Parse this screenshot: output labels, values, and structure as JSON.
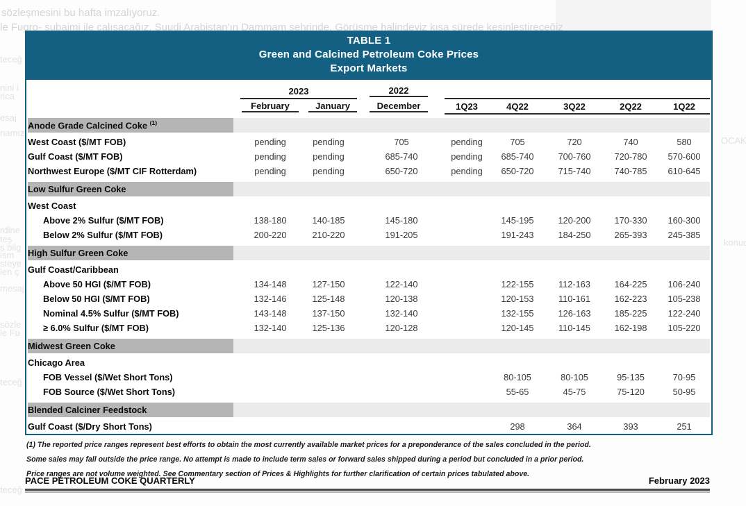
{
  "background": {
    "top_lines": [
      "sözleşmesini bu hafta imzalıyoruz.",
      "le Fugro- subaimi ile çalışacağız. Suudi Arabistan'ın Dammam şehrinde. Görüşme halindeyiz kısa sürede kesinleştireceğiz"
    ],
    "left_fragments": [
      "teceğ",
      "nini i",
      "rica",
      "esaj",
      "namız",
      "rdine",
      "teş",
      "s bilg",
      "ism",
      "steye",
      "len ç",
      "mesaj",
      "sözle",
      "le Fu",
      "teceğ",
      "teceğ"
    ],
    "right_fragments": [
      "OCAKER",
      "konud"
    ]
  },
  "table": {
    "title_line1": "TABLE 1",
    "title_line2": "Green and Calcined Petroleum Coke Prices",
    "title_line3": "Export Markets",
    "header": {
      "group_2023": "2023",
      "group_2022": "2022",
      "columns": [
        "February",
        "January",
        "December",
        "1Q23",
        "4Q22",
        "3Q22",
        "2Q22",
        "1Q22"
      ]
    },
    "sections": [
      {
        "header": "Anode Grade Calcined Coke",
        "sup": "(1)",
        "rows": [
          {
            "label": "West Coast ($/MT FOB)",
            "indent": 0,
            "values": [
              "pending",
              "pending",
              "705",
              "pending",
              "705",
              "720",
              "740",
              "580"
            ]
          },
          {
            "label": "Gulf Coast ($/MT FOB)",
            "indent": 0,
            "values": [
              "pending",
              "pending",
              "685-740",
              "pending",
              "685-740",
              "700-760",
              "720-780",
              "570-600"
            ]
          },
          {
            "label": "Northwest Europe ($/MT CIF Rotterdam)",
            "indent": 0,
            "values": [
              "pending",
              "pending",
              "650-720",
              "pending",
              "650-720",
              "715-740",
              "740-785",
              "610-645"
            ]
          }
        ]
      },
      {
        "header": "Low Sulfur Green Coke",
        "rows": [
          {
            "label": "West Coast",
            "indent": 0,
            "values": [
              "",
              "",
              "",
              "",
              "",
              "",
              "",
              ""
            ]
          },
          {
            "label": "Above 2% Sulfur ($/MT FOB)",
            "indent": 1,
            "values": [
              "138-180",
              "140-185",
              "145-180",
              "",
              "145-195",
              "120-200",
              "170-330",
              "160-300"
            ]
          },
          {
            "label": "Below 2% Sulfur ($/MT FOB)",
            "indent": 1,
            "values": [
              "200-220",
              "210-220",
              "191-205",
              "",
              "191-243",
              "184-250",
              "265-393",
              "245-385"
            ]
          }
        ]
      },
      {
        "header": "High Sulfur Green Coke",
        "rows": [
          {
            "label": "Gulf Coast/Caribbean",
            "indent": 0,
            "values": [
              "",
              "",
              "",
              "",
              "",
              "",
              "",
              ""
            ]
          },
          {
            "label": "Above 50 HGI ($/MT FOB)",
            "indent": 1,
            "values": [
              "134-148",
              "127-150",
              "122-140",
              "",
              "122-155",
              "112-163",
              "164-225",
              "106-240"
            ]
          },
          {
            "label": "Below 50 HGI ($/MT FOB)",
            "indent": 1,
            "values": [
              "132-146",
              "125-148",
              "120-138",
              "",
              "120-153",
              "110-161",
              "162-223",
              "105-238"
            ]
          },
          {
            "label": "Nominal 4.5% Sulfur ($/MT FOB)",
            "indent": 1,
            "values": [
              "143-148",
              "137-150",
              "132-140",
              "",
              "132-155",
              "126-163",
              "185-225",
              "122-240"
            ]
          },
          {
            "label": "≥ 6.0% Sulfur ($/MT FOB)",
            "indent": 1,
            "values": [
              "132-140",
              "125-136",
              "120-128",
              "",
              "120-145",
              "110-145",
              "162-198",
              "105-220"
            ]
          }
        ]
      },
      {
        "header": "Midwest Green Coke",
        "rows": [
          {
            "label": "Chicago Area",
            "indent": 0,
            "values": [
              "",
              "",
              "",
              "",
              "",
              "",
              "",
              ""
            ]
          },
          {
            "label": "FOB Vessel ($/Wet Short Tons)",
            "indent": 1,
            "values": [
              "",
              "",
              "",
              "",
              "80-105",
              "80-105",
              "95-135",
              "70-95"
            ]
          },
          {
            "label": "FOB Source ($/Wet Short Tons)",
            "indent": 1,
            "values": [
              "",
              "",
              "",
              "",
              "55-65",
              "45-75",
              "75-120",
              "50-95"
            ]
          }
        ]
      },
      {
        "header": "Blended Calciner Feedstock",
        "rows": [
          {
            "label": "Gulf Coast ($/Dry Short Tons)",
            "indent": 0,
            "values": [
              "",
              "",
              "",
              "",
              "298",
              "364",
              "393",
              "251"
            ]
          }
        ]
      }
    ]
  },
  "footnotes": [
    "(1) The reported price ranges represent best efforts to obtain the most currently available market prices for a preponderance of the sales concluded in the period.",
    "Some sales may fall outside the price range. No attempt is made to include term sales or forward sales shipped during a period but concluded in a prior period.",
    "Price ranges are not volume weighted. See Commentary section of Prices & Highlights for further clarification of certain prices tabulated above."
  ],
  "footer": {
    "left": "PACE PETROLEUM COKE QUARTERLY",
    "right": "February 2023"
  },
  "colors": {
    "header_teal": "#136083",
    "section_band_dark": "#b5b5b5",
    "section_band_light": "#ebebeb",
    "underline": "#2b2b2b"
  }
}
